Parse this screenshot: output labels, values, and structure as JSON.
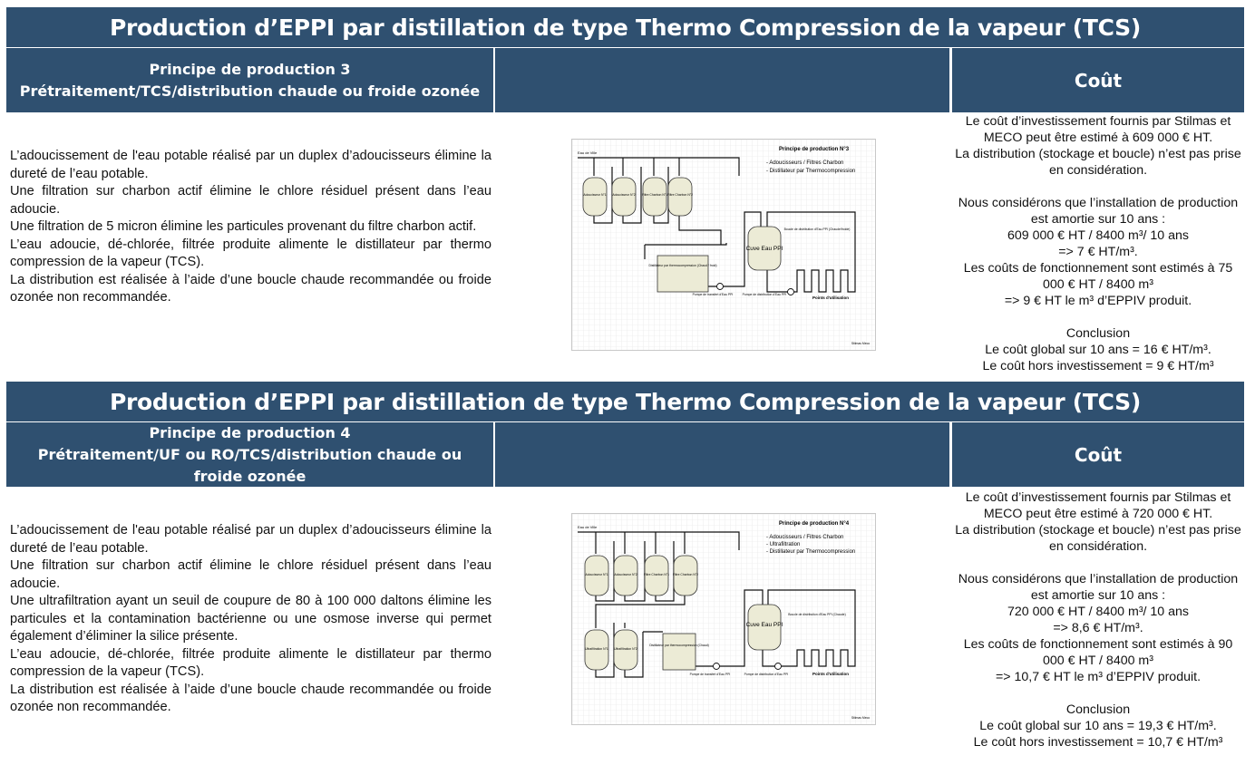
{
  "sections": [
    {
      "title": "Production d’EPPI par distillation de type Thermo Compression de la vapeur (TCS)",
      "principle_title": "Principe de production 3",
      "principle_subtitle": "Prétraitement/TCS/distribution chaude ou froide ozonée",
      "cost_header": "Coût",
      "description": [
        "L’adoucissement de l'eau potable réalisé par un duplex d’adoucisseurs élimine la dureté de l’eau potable.",
        "Une filtration sur charbon actif élimine le chlore résiduel présent dans l’eau adoucie.",
        "Une filtration de 5 micron élimine les particules provenant du filtre charbon actif.",
        "L’eau adoucie, dé-chlorée, filtrée produite alimente le distillateur par thermo compression de la vapeur (TCS).",
        "La distribution est réalisée à l’aide d’une boucle chaude recommandée ou froide ozonée non recommandée."
      ],
      "cost": [
        "Le coût d’investissement fournis par Stilmas et MECO peut être estimé à 609 000 € HT.",
        "La distribution (stockage et boucle) n’est pas prise en considération.",
        "",
        "Nous considérons que l’installation de production est amortie sur 10 ans :",
        "609 000 € HT / 8400 m³/ 10 ans",
        "=> 7 € HT/m³.",
        "Les coûts de fonctionnement sont estimés à 75 000 € HT / 8400 m³",
        "=> 9 € HT le m³ d’EPPIV produit.",
        "",
        "Conclusion",
        "Le coût global sur 10 ans = 16 € HT/m³.",
        "Le coût hors investissement = 9 € HT/m³"
      ],
      "diagram": {
        "title": "Principe de production N°3",
        "bullets": [
          "- Adoucisseurs / Filtres Charbon",
          "- Distillateur par Thermocompression"
        ],
        "inlet": "Eau de Ville",
        "vessels": [
          "Adoucisseur N°1",
          "Adoucisseur N°2",
          "Filtre Charbon N°1",
          "Filtre Charbon N°2"
        ],
        "distiller": "Distillateur par thermocompression (Chaud / froid)",
        "tank": "Cuve Eau PPI",
        "loop": "Boucle de distribution d'Eau PPI (Chaude/froide)",
        "pump1": "Pompe de transfert d'Eau PPI",
        "pump2": "Pompe de distribution d'Eau PPI",
        "use_points": "Points d'utilisation",
        "footer": "Stilmas Meco"
      }
    },
    {
      "title": "Production d’EPPI par distillation de type Thermo Compression de la vapeur (TCS)",
      "principle_title": "Principe de production 4",
      "principle_subtitle": "Prétraitement/UF ou RO/TCS/distribution chaude ou froide ozonée",
      "cost_header": "Coût",
      "description": [
        "L’adoucissement de l'eau potable réalisé par un duplex d’adoucisseurs élimine la dureté de l’eau potable.",
        "Une filtration sur charbon actif élimine le chlore résiduel présent dans l’eau adoucie.",
        "Une ultrafiltration ayant un seuil de coupure de 80 à 100 000 daltons élimine les particules et la contamination bactérienne ou une osmose inverse qui permet également d’éliminer la silice présente.",
        "L’eau adoucie, dé-chlorée, filtrée produite alimente le distillateur par thermo compression de la vapeur (TCS).",
        "La distribution est réalisée à l’aide d’une boucle chaude recommandée ou froide ozonée non recommandée."
      ],
      "cost": [
        "Le coût d’investissement fournis par Stilmas et MECO peut être estimé à 720 000 € HT.",
        "La distribution (stockage et boucle) n’est pas prise en considération.",
        "",
        "Nous considérons que l’installation de production est amortie sur 10 ans :",
        "720 000 € HT / 8400 m³/ 10 ans",
        "=> 8,6 € HT/m³.",
        "Les coûts de fonctionnement sont estimés à 90 000 € HT / 8400 m³",
        "=> 10,7 € HT le m³ d’EPPIV produit.",
        "",
        "Conclusion",
        "Le coût global sur 10 ans = 19,3 € HT/m³.",
        "Le coût hors investissement = 10,7 € HT/m³"
      ],
      "diagram": {
        "title": "Principe de production N°4",
        "bullets": [
          "- Adoucisseurs / Filtres Charbon",
          "- Ultrafiltration",
          "- Distillateur par Thermocompression"
        ],
        "inlet": "Eau de Ville",
        "vessels": [
          "Adoucisseur N°1",
          "Adoucisseur N°2",
          "Filtre Charbon N°1",
          "Filtre Charbon N°2",
          "Ultrafiltration N°1",
          "Ultrafiltration N°2"
        ],
        "distiller": "Distillateur par thermocompression (Chaud)",
        "tank": "Cuve Eau PPI",
        "loop": "Boucle de distribution d'Eau PPI (Chaude)",
        "pump1": "Pompe de transfert d'Eau PPI",
        "pump2": "Pompe de distribution d'Eau PPI",
        "use_points": "Points d'utilisation",
        "footer": "Stilmas Meco"
      }
    }
  ]
}
